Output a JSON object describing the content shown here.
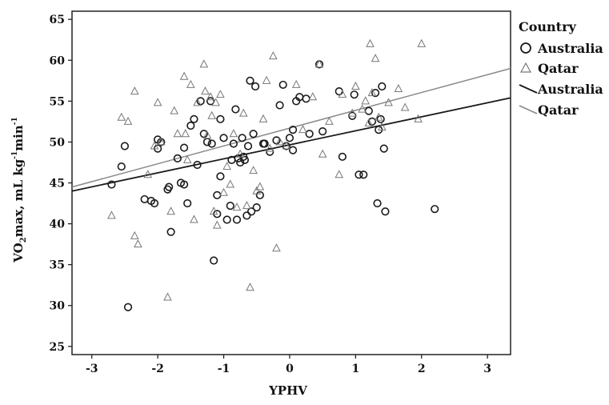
{
  "chart_data": {
    "type": "scatter",
    "xlabel": "YPHV",
    "ylabel_main": "VO",
    "ylabel_sub": "2",
    "ylabel_rest": "max, mL kg",
    "ylabel_sup1": "-1",
    "ylabel_mid": "min",
    "ylabel_sup2": "-1",
    "xlim": [
      -3.3,
      3.35
    ],
    "ylim": [
      24,
      66
    ],
    "x_ticks": [
      "-3",
      "-2",
      "-1",
      "0",
      "1",
      "2",
      "3"
    ],
    "y_ticks": [
      "25",
      "30",
      "35",
      "40",
      "45",
      "50",
      "55",
      "60",
      "65"
    ],
    "legend": {
      "title": "Country",
      "placement": "right",
      "items": [
        "Australia",
        "Qatar",
        "Australia",
        "Qatar"
      ]
    },
    "colors": {
      "australia": "#1a1a1a",
      "qatar": "#777777",
      "qatar_line": "#8a8a8a",
      "australia_line": "#1a1a1a"
    },
    "series": [
      {
        "name": "Australia",
        "marker": "circle",
        "points": [
          [
            -2.7,
            44.8
          ],
          [
            -2.55,
            47.0
          ],
          [
            -2.5,
            49.5
          ],
          [
            -2.45,
            29.8
          ],
          [
            -2.2,
            43.0
          ],
          [
            -2.1,
            42.8
          ],
          [
            -2.05,
            42.5
          ],
          [
            -2.0,
            49.2
          ],
          [
            -2.0,
            50.3
          ],
          [
            -1.95,
            50.0
          ],
          [
            -1.85,
            44.2
          ],
          [
            -1.83,
            44.5
          ],
          [
            -1.8,
            39.0
          ],
          [
            -1.7,
            48.0
          ],
          [
            -1.65,
            45.0
          ],
          [
            -1.6,
            49.3
          ],
          [
            -1.6,
            44.8
          ],
          [
            -1.55,
            42.5
          ],
          [
            -1.5,
            52.0
          ],
          [
            -1.45,
            52.8
          ],
          [
            -1.4,
            47.2
          ],
          [
            -1.35,
            55.0
          ],
          [
            -1.3,
            51.0
          ],
          [
            -1.25,
            50.0
          ],
          [
            -1.2,
            55.0
          ],
          [
            -1.18,
            49.8
          ],
          [
            -1.15,
            35.5
          ],
          [
            -1.1,
            43.5
          ],
          [
            -1.1,
            41.2
          ],
          [
            -1.05,
            45.8
          ],
          [
            -1.05,
            52.8
          ],
          [
            -1.0,
            50.5
          ],
          [
            -0.95,
            40.5
          ],
          [
            -0.9,
            42.2
          ],
          [
            -0.88,
            47.8
          ],
          [
            -0.85,
            49.8
          ],
          [
            -0.82,
            54.0
          ],
          [
            -0.8,
            40.5
          ],
          [
            -0.78,
            48.0
          ],
          [
            -0.75,
            47.5
          ],
          [
            -0.72,
            50.5
          ],
          [
            -0.7,
            48.2
          ],
          [
            -0.68,
            47.8
          ],
          [
            -0.65,
            41.0
          ],
          [
            -0.63,
            49.5
          ],
          [
            -0.6,
            57.5
          ],
          [
            -0.58,
            41.5
          ],
          [
            -0.55,
            51.0
          ],
          [
            -0.52,
            56.8
          ],
          [
            -0.5,
            42.0
          ],
          [
            -0.45,
            43.5
          ],
          [
            -0.4,
            49.8
          ],
          [
            -0.38,
            49.8
          ],
          [
            -0.3,
            48.8
          ],
          [
            -0.2,
            50.2
          ],
          [
            -0.15,
            54.5
          ],
          [
            -0.1,
            57.0
          ],
          [
            -0.05,
            49.5
          ],
          [
            0.0,
            50.5
          ],
          [
            0.05,
            49.0
          ],
          [
            0.05,
            51.5
          ],
          [
            0.1,
            55.0
          ],
          [
            0.15,
            55.5
          ],
          [
            0.25,
            55.3
          ],
          [
            0.3,
            51.0
          ],
          [
            0.45,
            59.5
          ],
          [
            0.5,
            51.3
          ],
          [
            0.75,
            56.2
          ],
          [
            0.8,
            48.2
          ],
          [
            0.95,
            53.2
          ],
          [
            0.98,
            55.8
          ],
          [
            1.05,
            46.0
          ],
          [
            1.12,
            46.0
          ],
          [
            1.2,
            53.8
          ],
          [
            1.25,
            52.5
          ],
          [
            1.3,
            56.0
          ],
          [
            1.33,
            42.5
          ],
          [
            1.35,
            51.5
          ],
          [
            1.38,
            52.8
          ],
          [
            1.4,
            56.8
          ],
          [
            1.43,
            49.2
          ],
          [
            1.45,
            41.5
          ],
          [
            2.2,
            41.8
          ]
        ]
      },
      {
        "name": "Qatar",
        "marker": "triangle",
        "points": [
          [
            -2.7,
            41.0
          ],
          [
            -2.55,
            53.0
          ],
          [
            -2.45,
            52.5
          ],
          [
            -2.35,
            56.2
          ],
          [
            -2.35,
            38.5
          ],
          [
            -2.3,
            37.5
          ],
          [
            -2.15,
            46.0
          ],
          [
            -2.05,
            49.5
          ],
          [
            -2.0,
            54.8
          ],
          [
            -1.95,
            50.0
          ],
          [
            -1.85,
            31.0
          ],
          [
            -1.8,
            41.5
          ],
          [
            -1.75,
            53.8
          ],
          [
            -1.7,
            51.0
          ],
          [
            -1.6,
            58.0
          ],
          [
            -1.58,
            51.0
          ],
          [
            -1.55,
            47.8
          ],
          [
            -1.5,
            57.0
          ],
          [
            -1.45,
            40.5
          ],
          [
            -1.4,
            54.8
          ],
          [
            -1.3,
            59.5
          ],
          [
            -1.28,
            56.2
          ],
          [
            -1.25,
            50.8
          ],
          [
            -1.2,
            55.5
          ],
          [
            -1.18,
            53.2
          ],
          [
            -1.15,
            41.5
          ],
          [
            -1.12,
            54.8
          ],
          [
            -1.1,
            39.8
          ],
          [
            -1.05,
            55.8
          ],
          [
            -1.0,
            43.8
          ],
          [
            -0.95,
            47.0
          ],
          [
            -0.9,
            44.8
          ],
          [
            -0.85,
            51.0
          ],
          [
            -0.8,
            42.0
          ],
          [
            -0.75,
            48.5
          ],
          [
            -0.7,
            53.5
          ],
          [
            -0.65,
            42.2
          ],
          [
            -0.6,
            32.2
          ],
          [
            -0.55,
            46.5
          ],
          [
            -0.5,
            44.0
          ],
          [
            -0.45,
            44.5
          ],
          [
            -0.4,
            52.8
          ],
          [
            -0.35,
            57.5
          ],
          [
            -0.3,
            49.2
          ],
          [
            -0.25,
            60.5
          ],
          [
            -0.2,
            37.0
          ],
          [
            -0.15,
            50.0
          ],
          [
            -0.05,
            49.5
          ],
          [
            0.1,
            57.0
          ],
          [
            0.2,
            51.5
          ],
          [
            0.35,
            55.5
          ],
          [
            0.45,
            59.5
          ],
          [
            0.5,
            48.5
          ],
          [
            0.6,
            52.5
          ],
          [
            0.75,
            46.0
          ],
          [
            0.8,
            55.8
          ],
          [
            0.95,
            53.5
          ],
          [
            1.0,
            56.8
          ],
          [
            1.1,
            54.0
          ],
          [
            1.15,
            55.0
          ],
          [
            1.2,
            52.3
          ],
          [
            1.22,
            62.0
          ],
          [
            1.25,
            56.0
          ],
          [
            1.3,
            60.2
          ],
          [
            1.35,
            53.0
          ],
          [
            1.4,
            51.8
          ],
          [
            1.5,
            54.8
          ],
          [
            1.65,
            56.5
          ],
          [
            1.75,
            54.2
          ],
          [
            1.95,
            52.8
          ],
          [
            2.0,
            62.0
          ]
        ]
      }
    ],
    "fit_lines": [
      {
        "name": "Australia",
        "x": [
          -3.3,
          3.35
        ],
        "y": [
          44.0,
          55.4
        ]
      },
      {
        "name": "Qatar",
        "x": [
          -3.3,
          3.35
        ],
        "y": [
          44.5,
          59.0
        ]
      }
    ]
  }
}
